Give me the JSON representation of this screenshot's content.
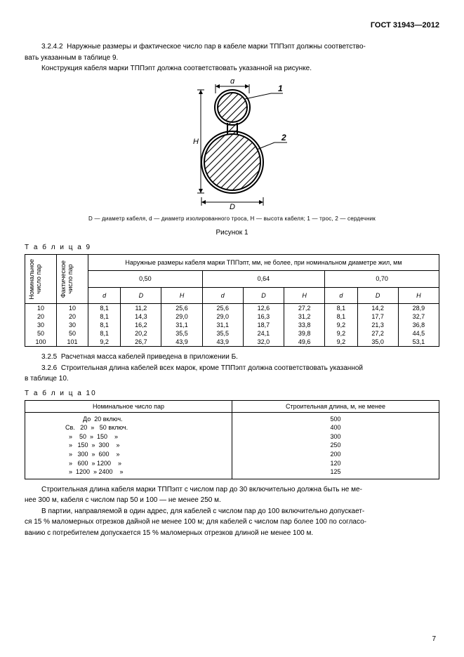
{
  "header": {
    "doc_code": "ГОСТ 31943—2012"
  },
  "s3242": {
    "num": "3.2.4.2",
    "text1": "Наружные размеры и фактическое число пар в кабеле марки ТППэпт должны соответство-",
    "text1b": "вать указанным в таблице 9.",
    "text2": "Конструкция кабеля марки ТППэпт должна соответствовать указанной на рисунке."
  },
  "figure": {
    "caption": "D — диаметр кабеля, d — диаметр изолированного троса, H — высота кабеля; 1 — трос, 2 — сердечник",
    "label": "Рисунок 1",
    "label_d": "d",
    "label_D": "D",
    "label_H": "H",
    "label_1": "1",
    "label_2": "2"
  },
  "table9": {
    "label": "Т а б л и ц а   9",
    "head_nom": "Номинальное\nчисло пар",
    "head_fact": "Фактическое\nчисло пар",
    "head_main": "Наружные размеры кабеля марки ТППэпт, мм, не более, при номинальном диаметре жил, мм",
    "groups": [
      "0,50",
      "0,64",
      "0,70"
    ],
    "subcols": [
      "d",
      "D",
      "H"
    ],
    "rows": [
      {
        "nom": "10",
        "fact": "10",
        "g1": [
          "8,1",
          "11,2",
          "25,6"
        ],
        "g2": [
          "25,6",
          "12,6",
          "27,2"
        ],
        "g3": [
          "8,1",
          "14,2",
          "28,9"
        ]
      },
      {
        "nom": "20",
        "fact": "20",
        "g1": [
          "8,1",
          "14,3",
          "29,0"
        ],
        "g2": [
          "29,0",
          "16,3",
          "31,2"
        ],
        "g3": [
          "8,1",
          "17,7",
          "32,7"
        ]
      },
      {
        "nom": "30",
        "fact": "30",
        "g1": [
          "8,1",
          "16,2",
          "31,1"
        ],
        "g2": [
          "31,1",
          "18,7",
          "33,8"
        ],
        "g3": [
          "9,2",
          "21,3",
          "36,8"
        ]
      },
      {
        "nom": "50",
        "fact": "50",
        "g1": [
          "8,1",
          "20,2",
          "35,5"
        ],
        "g2": [
          "35,5",
          "24,1",
          "39,8"
        ],
        "g3": [
          "9,2",
          "27,2",
          "44,5"
        ]
      },
      {
        "nom": "100",
        "fact": "101",
        "g1": [
          "9,2",
          "26,7",
          "43,9"
        ],
        "g2": [
          "43,9",
          "32,0",
          "49,6"
        ],
        "g3": [
          "9,2",
          "35,0",
          "53,1"
        ]
      }
    ]
  },
  "s325": {
    "num": "3.2.5",
    "text": "Расчетная масса кабелей приведена в приложении Б."
  },
  "s326": {
    "num": "3.2.6",
    "text1": "Строительная длина кабелей всех марок, кроме ТППэпт должна соответствовать указанной",
    "text1b": "в таблице 10."
  },
  "table10": {
    "label": "Т а б л и ц а   10",
    "col1": "Номинальное число пар",
    "col2": "Строительная длина, м, не менее",
    "ranges": [
      "          До  20 включ.",
      "Св.   20  »   50 включ.",
      "  »    50  »  150    »",
      "  »   150  »  300    »",
      "  »   300  »  600    »",
      "  »   600  » 1200    »",
      "  »  1200  » 2400    »"
    ],
    "values": [
      "500",
      "400",
      "300",
      "250",
      "200",
      "120",
      "125"
    ]
  },
  "tail": {
    "p1": "Строительная длина кабеля марки ТППэпт с числом пар до 30 включительно должна быть не ме-",
    "p1b": "нее 300 м, кабеля с числом пар 50 и 100 — не менее 250 м.",
    "p2": "В партии, направляемой в один адрес, для кабелей с числом пар до 100 включительно допускает-",
    "p2b": "ся 15 % маломерных отрезков дайной не менее 100 м; для кабелей с числом пар более 100 по согласо-",
    "p2c": "ванию с потребителем допускается 15 % маломерных отрезков длиной не менее 100 м."
  },
  "pagenum": "7",
  "colors": {
    "text": "#000000",
    "bg": "#ffffff",
    "hatch": "#000000"
  }
}
